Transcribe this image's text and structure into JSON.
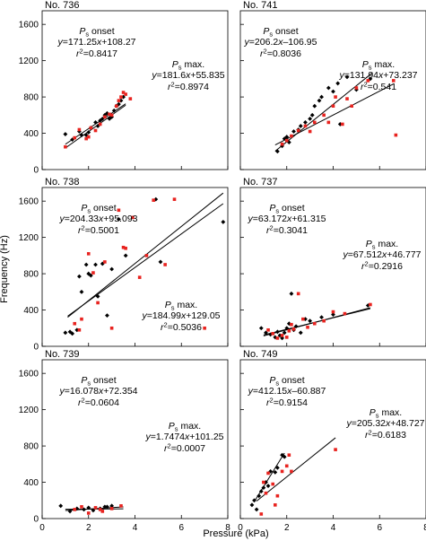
{
  "x_axis_label": "Pressure (kPa)",
  "y_axis_label": "Frequency (Hz)",
  "x_ticks": [
    "0",
    "2",
    "4",
    "6",
    "8"
  ],
  "y_ticks": [
    "0",
    "400",
    "800",
    "1200",
    "1600"
  ],
  "colors": {
    "onset": "#000000",
    "max": "#e8231f"
  },
  "chart_data": [
    {
      "type": "scatter",
      "title": "No. 736",
      "xlim": [
        0,
        8
      ],
      "ylim": [
        0,
        1750
      ],
      "annotations": [
        {
          "prefix": "P",
          "sub": "s",
          "label": " onset",
          "eq": "y=171.25x+108.27",
          "r2": "=0.8417"
        },
        {
          "prefix": "P",
          "sub": "s",
          "label": " max.",
          "eq": "y=181.6x+55.835",
          "r2": "=0.8974"
        }
      ],
      "fits": [
        {
          "slope": 171.25,
          "intercept": 108.27,
          "x_range": [
            1.0,
            3.6
          ]
        },
        {
          "slope": 181.6,
          "intercept": 55.835,
          "x_range": [
            1.0,
            3.6
          ]
        }
      ],
      "series": [
        {
          "name": "onset",
          "color": "#000000",
          "points": [
            [
              1.0,
              390
            ],
            [
              1.3,
              330
            ],
            [
              1.6,
              420
            ],
            [
              1.7,
              380
            ],
            [
              1.9,
              380
            ],
            [
              2.0,
              410
            ],
            [
              2.1,
              460
            ],
            [
              2.3,
              520
            ],
            [
              2.4,
              480
            ],
            [
              2.5,
              540
            ],
            [
              2.6,
              560
            ],
            [
              2.7,
              600
            ],
            [
              2.8,
              620
            ],
            [
              2.9,
              560
            ],
            [
              3.0,
              580
            ],
            [
              3.1,
              650
            ],
            [
              3.2,
              700
            ],
            [
              3.3,
              720
            ],
            [
              3.4,
              760
            ],
            [
              3.5,
              800
            ]
          ]
        },
        {
          "name": "max",
          "color": "#e8231f",
          "points": [
            [
              1.0,
              250
            ],
            [
              1.4,
              350
            ],
            [
              1.6,
              440
            ],
            [
              1.9,
              340
            ],
            [
              2.0,
              360
            ],
            [
              2.1,
              460
            ],
            [
              2.3,
              430
            ],
            [
              2.5,
              500
            ],
            [
              2.7,
              580
            ],
            [
              2.9,
              610
            ],
            [
              3.0,
              600
            ],
            [
              3.2,
              700
            ],
            [
              3.3,
              760
            ],
            [
              3.4,
              800
            ],
            [
              3.5,
              850
            ],
            [
              3.6,
              830
            ],
            [
              3.8,
              780
            ]
          ]
        }
      ]
    },
    {
      "type": "scatter",
      "title": "No. 741",
      "xlim": [
        0,
        8
      ],
      "ylim": [
        0,
        1750
      ],
      "annotations": [
        {
          "prefix": "P",
          "sub": "s",
          "label": " onset",
          "eq": "y=206.2x–106.95",
          "r2": "=0.8036"
        },
        {
          "prefix": "P",
          "sub": "s",
          "label": " max.",
          "eq": "y=131.94x+73.237",
          "r2": "=0.541"
        }
      ],
      "fits": [
        {
          "slope": 206.2,
          "intercept": -106.95,
          "x_range": [
            1.5,
            5.7
          ]
        },
        {
          "slope": 131.94,
          "intercept": 73.237,
          "x_range": [
            1.5,
            6.6
          ]
        }
      ],
      "series": [
        {
          "name": "onset",
          "color": "#000000",
          "points": [
            [
              1.6,
              200
            ],
            [
              1.8,
              260
            ],
            [
              1.9,
              340
            ],
            [
              2.0,
              360
            ],
            [
              2.1,
              300
            ],
            [
              2.3,
              420
            ],
            [
              2.5,
              440
            ],
            [
              2.6,
              480
            ],
            [
              2.8,
              520
            ],
            [
              3.0,
              560
            ],
            [
              3.1,
              600
            ],
            [
              3.2,
              700
            ],
            [
              3.4,
              760
            ],
            [
              3.5,
              800
            ],
            [
              3.8,
              900
            ],
            [
              4.0,
              860
            ],
            [
              4.2,
              950
            ],
            [
              4.3,
              500
            ],
            [
              4.6,
              1020
            ],
            [
              5.0,
              880
            ],
            [
              5.6,
              1000
            ]
          ]
        },
        {
          "name": "max",
          "color": "#e8231f",
          "points": [
            [
              1.8,
              280
            ],
            [
              2.0,
              320
            ],
            [
              2.2,
              370
            ],
            [
              2.5,
              430
            ],
            [
              2.8,
              480
            ],
            [
              3.0,
              420
            ],
            [
              3.2,
              520
            ],
            [
              3.6,
              600
            ],
            [
              3.8,
              520
            ],
            [
              4.0,
              700
            ],
            [
              4.1,
              800
            ],
            [
              4.4,
              500
            ],
            [
              4.6,
              780
            ],
            [
              4.8,
              700
            ],
            [
              5.0,
              900
            ],
            [
              5.5,
              980
            ],
            [
              6.6,
              980
            ],
            [
              6.7,
              380
            ]
          ]
        }
      ]
    },
    {
      "type": "scatter",
      "title": "No. 738",
      "xlim": [
        0,
        8
      ],
      "ylim": [
        0,
        1750
      ],
      "annotations": [
        {
          "prefix": "P",
          "sub": "s",
          "label": " onset",
          "eq": "y=204.33x+95.093",
          "r2": "=0.5001"
        },
        {
          "prefix": "P",
          "sub": "s",
          "label": " max.",
          "eq": "y=184.99x+129.05",
          "r2": "=0.5036"
        }
      ],
      "fits": [
        {
          "slope": 204.33,
          "intercept": 95.093,
          "x_range": [
            1.1,
            7.8
          ]
        },
        {
          "slope": 184.99,
          "intercept": 129.05,
          "x_range": [
            1.1,
            7.8
          ]
        }
      ],
      "series": [
        {
          "name": "onset",
          "color": "#000000",
          "points": [
            [
              1.0,
              150
            ],
            [
              1.2,
              160
            ],
            [
              1.3,
              140
            ],
            [
              1.5,
              180
            ],
            [
              1.6,
              770
            ],
            [
              1.7,
              600
            ],
            [
              1.9,
              900
            ],
            [
              2.0,
              800
            ],
            [
              2.1,
              780
            ],
            [
              2.3,
              900
            ],
            [
              2.4,
              550
            ],
            [
              2.6,
              910
            ],
            [
              2.8,
              340
            ],
            [
              3.0,
              850
            ],
            [
              3.3,
              1400
            ],
            [
              3.6,
              1000
            ],
            [
              4.9,
              1620
            ],
            [
              5.1,
              930
            ],
            [
              7.8,
              1370
            ]
          ]
        },
        {
          "name": "max",
          "color": "#e8231f",
          "points": [
            [
              1.4,
              250
            ],
            [
              1.6,
              180
            ],
            [
              1.7,
              300
            ],
            [
              2.0,
              1020
            ],
            [
              2.2,
              810
            ],
            [
              2.4,
              480
            ],
            [
              2.7,
              930
            ],
            [
              3.0,
              200
            ],
            [
              3.3,
              1500
            ],
            [
              3.5,
              1090
            ],
            [
              3.6,
              1080
            ],
            [
              3.9,
              1420
            ],
            [
              4.2,
              760
            ],
            [
              4.5,
              1000
            ],
            [
              4.8,
              1610
            ],
            [
              5.3,
              900
            ],
            [
              5.7,
              1620
            ],
            [
              7.0,
              200
            ]
          ]
        }
      ]
    },
    {
      "type": "scatter",
      "title": "No. 737",
      "xlim": [
        0,
        8
      ],
      "ylim": [
        0,
        1750
      ],
      "annotations": [
        {
          "prefix": "P",
          "sub": "s",
          "label": " onset",
          "eq": "y=63.172x+61.315",
          "r2": "=0.3041"
        },
        {
          "prefix": "P",
          "sub": "s",
          "label": " max.",
          "eq": "y=67.512x+46.777",
          "r2": "=0.2916"
        }
      ],
      "fits": [
        {
          "slope": 63.172,
          "intercept": 61.315,
          "x_range": [
            1.0,
            5.6
          ]
        },
        {
          "slope": 67.512,
          "intercept": 46.777,
          "x_range": [
            1.0,
            5.6
          ]
        }
      ],
      "series": [
        {
          "name": "onset",
          "color": "#000000",
          "points": [
            [
              0.9,
              200
            ],
            [
              1.1,
              150
            ],
            [
              1.3,
              130
            ],
            [
              1.5,
              100
            ],
            [
              1.6,
              160
            ],
            [
              1.7,
              120
            ],
            [
              1.8,
              90
            ],
            [
              1.9,
              150
            ],
            [
              2.0,
              200
            ],
            [
              2.1,
              250
            ],
            [
              2.2,
              580
            ],
            [
              2.3,
              180
            ],
            [
              2.4,
              220
            ],
            [
              2.6,
              150
            ],
            [
              2.8,
              300
            ],
            [
              3.0,
              280
            ],
            [
              3.5,
              320
            ],
            [
              4.0,
              350
            ],
            [
              5.5,
              450
            ]
          ]
        },
        {
          "name": "max",
          "color": "#e8231f",
          "points": [
            [
              1.2,
              180
            ],
            [
              1.4,
              140
            ],
            [
              1.6,
              90
            ],
            [
              1.8,
              120
            ],
            [
              2.0,
              100
            ],
            [
              2.1,
              170
            ],
            [
              2.2,
              240
            ],
            [
              2.3,
              190
            ],
            [
              2.5,
              580
            ],
            [
              2.7,
              300
            ],
            [
              2.9,
              210
            ],
            [
              3.2,
              250
            ],
            [
              3.6,
              280
            ],
            [
              4.0,
              380
            ],
            [
              4.5,
              360
            ],
            [
              5.6,
              460
            ]
          ]
        }
      ]
    },
    {
      "type": "scatter",
      "title": "No. 739",
      "xlim": [
        0,
        8
      ],
      "ylim": [
        0,
        1750
      ],
      "annotations": [
        {
          "prefix": "P",
          "sub": "s",
          "label": " onset",
          "eq": "y=16.078x+72.354",
          "r2": "=0.0604"
        },
        {
          "prefix": "P",
          "sub": "s",
          "label": " max.",
          "eq": "y=1.7474x+101.25",
          "r2": "=0.0007"
        }
      ],
      "fits": [
        {
          "slope": 16.078,
          "intercept": 72.354,
          "x_range": [
            1.0,
            3.5
          ]
        },
        {
          "slope": 1.7474,
          "intercept": 101.25,
          "x_range": [
            1.0,
            3.5
          ]
        }
      ],
      "series": [
        {
          "name": "onset",
          "color": "#000000",
          "points": [
            [
              0.8,
              140
            ],
            [
              1.2,
              80
            ],
            [
              1.5,
              110
            ],
            [
              1.8,
              100
            ],
            [
              2.0,
              120
            ],
            [
              2.2,
              90
            ],
            [
              2.5,
              110
            ],
            [
              2.7,
              130
            ],
            [
              2.8,
              130
            ],
            [
              3.0,
              140
            ]
          ]
        },
        {
          "name": "max",
          "color": "#e8231f",
          "points": [
            [
              1.4,
              100
            ],
            [
              1.7,
              130
            ],
            [
              2.0,
              60
            ],
            [
              2.3,
              120
            ],
            [
              2.5,
              100
            ],
            [
              2.6,
              80
            ],
            [
              3.0,
              110
            ],
            [
              3.4,
              140
            ]
          ]
        }
      ]
    },
    {
      "type": "scatter",
      "title": "No. 749",
      "xlim": [
        0,
        8
      ],
      "ylim": [
        0,
        1750
      ],
      "annotations": [
        {
          "prefix": "P",
          "sub": "s",
          "label": " onset",
          "eq": "y=412.15x–60.887",
          "r2": "=0.9154"
        },
        {
          "prefix": "P",
          "sub": "s",
          "label": " max.",
          "eq": "y=205.32x+48.727",
          "r2": "=0.6183"
        }
      ],
      "fits": [
        {
          "slope": 412.15,
          "intercept": -60.887,
          "x_range": [
            0.6,
            1.9
          ]
        },
        {
          "slope": 205.32,
          "intercept": 48.727,
          "x_range": [
            0.7,
            4.1
          ]
        }
      ],
      "series": [
        {
          "name": "onset",
          "color": "#000000",
          "points": [
            [
              0.5,
              150
            ],
            [
              0.6,
              200
            ],
            [
              0.7,
              100
            ],
            [
              0.8,
              250
            ],
            [
              0.9,
              300
            ],
            [
              1.0,
              340
            ],
            [
              1.1,
              400
            ],
            [
              1.2,
              360
            ],
            [
              1.3,
              520
            ],
            [
              1.5,
              510
            ],
            [
              1.6,
              560
            ],
            [
              1.8,
              700
            ],
            [
              1.9,
              680
            ]
          ]
        },
        {
          "name": "max",
          "color": "#e8231f",
          "points": [
            [
              0.9,
              50
            ],
            [
              1.0,
              400
            ],
            [
              1.1,
              280
            ],
            [
              1.2,
              500
            ],
            [
              1.4,
              380
            ],
            [
              1.5,
              150
            ],
            [
              1.6,
              250
            ],
            [
              1.8,
              520
            ],
            [
              2.0,
              580
            ],
            [
              2.1,
              700
            ],
            [
              2.2,
              520
            ],
            [
              4.1,
              760
            ]
          ]
        }
      ]
    }
  ]
}
